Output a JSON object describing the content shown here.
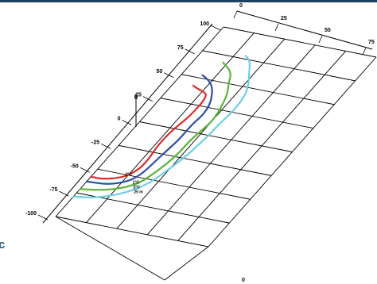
{
  "side_text": "c",
  "chart_data": {
    "type": "line",
    "title": "",
    "xlabel": "",
    "ylabel": "",
    "marker_label": "0",
    "left_axis": {
      "tick_labels": [
        "100",
        "75",
        "50",
        "25",
        "0",
        "-25",
        "-50",
        "-75",
        "-100"
      ],
      "range": [
        -100,
        100
      ]
    },
    "top_axis": {
      "tick_labels": [
        "0",
        "25",
        "50",
        "75"
      ],
      "range": [
        0,
        75
      ]
    },
    "bottom_axis": {
      "tick_labels": [
        "0"
      ]
    },
    "grid": true,
    "series": [
      {
        "name": "2°C",
        "color": "#dd2a2a",
        "points": [
          [
            9,
            42
          ],
          [
            12,
            40
          ],
          [
            16,
            38
          ],
          [
            18,
            36
          ],
          [
            19,
            30
          ],
          [
            19,
            20
          ],
          [
            18.5,
            10
          ],
          [
            17,
            0
          ],
          [
            16.5,
            -10
          ],
          [
            16.5,
            -20
          ],
          [
            17.5,
            -30
          ],
          [
            17.5,
            -42
          ],
          [
            15,
            -50
          ],
          [
            12,
            -54
          ],
          [
            6,
            -58
          ],
          [
            0,
            -58
          ]
        ]
      },
      {
        "name": "1°C",
        "color": "#2e4fa3",
        "points": [
          [
            9,
            53
          ],
          [
            13,
            50
          ],
          [
            17,
            45
          ],
          [
            20,
            38
          ],
          [
            23,
            28
          ],
          [
            24,
            18
          ],
          [
            23,
            8
          ],
          [
            23,
            0
          ],
          [
            23,
            -10
          ],
          [
            22,
            -22
          ],
          [
            21,
            -36
          ],
          [
            20,
            -48
          ],
          [
            17,
            -56
          ],
          [
            10,
            -62
          ],
          [
            0,
            -63
          ]
        ]
      },
      {
        "name": "3°C",
        "color": "#5bb33a",
        "points": [
          [
            13,
            68
          ],
          [
            15,
            66
          ],
          [
            18,
            63
          ],
          [
            21,
            58
          ],
          [
            23,
            50
          ],
          [
            26,
            42
          ],
          [
            28,
            32
          ],
          [
            29.5,
            22
          ],
          [
            30,
            12
          ],
          [
            29,
            2
          ],
          [
            28,
            -8
          ],
          [
            28,
            -20
          ],
          [
            27,
            -32
          ],
          [
            25,
            -44
          ],
          [
            23,
            -54
          ],
          [
            18,
            -62
          ],
          [
            10,
            -68
          ],
          [
            0,
            -71
          ]
        ]
      },
      {
        "name": "25 m",
        "color": "#6ccfe2",
        "points": [
          [
            20,
            78
          ],
          [
            22,
            76
          ],
          [
            24,
            73
          ],
          [
            26,
            68
          ],
          [
            29,
            60
          ],
          [
            32,
            52
          ],
          [
            34,
            44
          ],
          [
            35,
            34
          ],
          [
            35,
            22
          ],
          [
            34,
            12
          ],
          [
            34,
            0
          ],
          [
            33,
            -12
          ],
          [
            32,
            -24
          ],
          [
            30,
            -36
          ],
          [
            28,
            -48
          ],
          [
            25,
            -58
          ],
          [
            19,
            -68
          ],
          [
            10,
            -76
          ],
          [
            0,
            -79
          ]
        ]
      }
    ],
    "line_labels": [
      {
        "text": "2°C",
        "u": 14,
        "v": -51
      },
      {
        "text": "1°C",
        "u": 20,
        "v": -57
      },
      {
        "text": "3°C",
        "u": 22,
        "v": -61
      },
      {
        "text": "25 m",
        "u": 24,
        "v": -65
      }
    ]
  }
}
